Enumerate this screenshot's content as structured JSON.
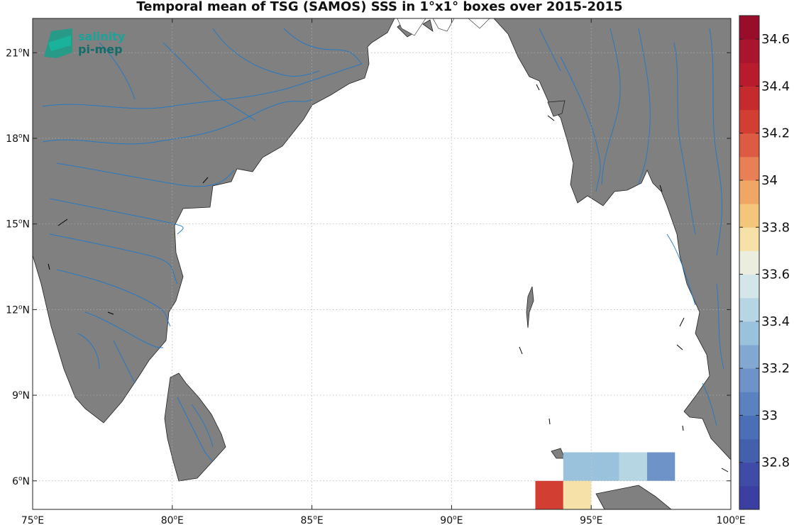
{
  "map": {
    "title": "Temporal mean of TSG (SAMOS) SSS in 1°x1° boxes over 2015-2015",
    "lon_ticks": [
      75,
      80,
      85,
      90,
      95,
      100
    ],
    "lat_ticks": [
      6,
      9,
      12,
      15,
      18,
      21
    ],
    "lon_unit": "E",
    "lat_unit": "N",
    "extent": {
      "lon": [
        75,
        100
      ],
      "lat": [
        5,
        22.2
      ]
    },
    "land_color": "#808080",
    "river_color": "#1f78c8",
    "logo": {
      "line1": "salinity",
      "line2": "pi-mep",
      "color": "#1aa39a"
    }
  },
  "chart_data": {
    "type": "heatmap",
    "title": "Temporal mean of TSG (SAMOS) SSS in 1°x1° boxes over 2015-2015",
    "cells": [
      {
        "lon": 94.5,
        "lat": 6.5,
        "sss": 33.3
      },
      {
        "lon": 95.5,
        "lat": 6.5,
        "sss": 33.3
      },
      {
        "lon": 96.5,
        "lat": 6.5,
        "sss": 33.4
      },
      {
        "lon": 97.5,
        "lat": 6.5,
        "sss": 33.1
      },
      {
        "lon": 93.5,
        "lat": 5.5,
        "sss": 34.25
      },
      {
        "lon": 94.5,
        "lat": 5.5,
        "sss": 33.75
      }
    ]
  },
  "colorbar": {
    "min": 32.6,
    "max": 34.7,
    "step": 0.1,
    "tick_labels": [
      "32.8",
      "33",
      "33.2",
      "33.4",
      "33.6",
      "33.8",
      "34",
      "34.2",
      "34.4",
      "34.6"
    ],
    "colors": [
      "#3b3fa2",
      "#3e4ca7",
      "#4360ad",
      "#4a6fb6",
      "#5a81c0",
      "#6d93c8",
      "#82a8d2",
      "#9bc2dc",
      "#b6d6e4",
      "#d3e7ea",
      "#ebeede",
      "#f6e2a8",
      "#f4c67c",
      "#f0a766",
      "#e87f55",
      "#dd5a43",
      "#d23e32",
      "#c52a2d",
      "#b81c2c",
      "#a8152c",
      "#990d2a"
    ]
  }
}
